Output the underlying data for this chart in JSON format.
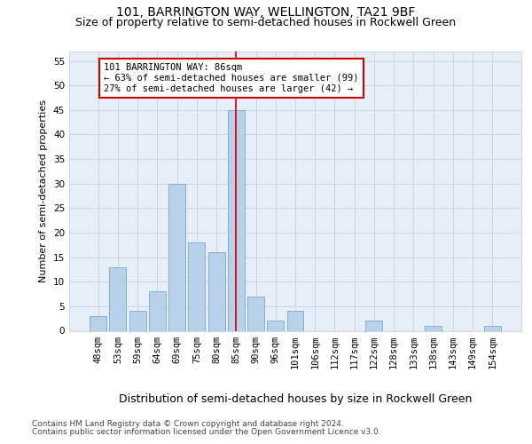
{
  "title1": "101, BARRINGTON WAY, WELLINGTON, TA21 9BF",
  "title2": "Size of property relative to semi-detached houses in Rockwell Green",
  "xlabel": "Distribution of semi-detached houses by size in Rockwell Green",
  "ylabel": "Number of semi-detached properties",
  "bar_labels": [
    "48sqm",
    "53sqm",
    "59sqm",
    "64sqm",
    "69sqm",
    "75sqm",
    "80sqm",
    "85sqm",
    "90sqm",
    "96sqm",
    "101sqm",
    "106sqm",
    "112sqm",
    "117sqm",
    "122sqm",
    "128sqm",
    "133sqm",
    "138sqm",
    "143sqm",
    "149sqm",
    "154sqm"
  ],
  "bar_values": [
    3,
    13,
    4,
    8,
    30,
    18,
    16,
    45,
    7,
    2,
    4,
    0,
    0,
    0,
    2,
    0,
    0,
    1,
    0,
    0,
    1
  ],
  "bar_color": "#b8d0e8",
  "bar_edgecolor": "#7aaac8",
  "highlight_index": 7,
  "highlight_color": "#cc0000",
  "annotation_line1": "101 BARRINGTON WAY: 86sqm",
  "annotation_line2": "← 63% of semi-detached houses are smaller (99)",
  "annotation_line3": "27% of semi-detached houses are larger (42) →",
  "annotation_box_color": "#cc0000",
  "ylim": [
    0,
    57
  ],
  "yticks": [
    0,
    5,
    10,
    15,
    20,
    25,
    30,
    35,
    40,
    45,
    50,
    55
  ],
  "footnote1": "Contains HM Land Registry data © Crown copyright and database right 2024.",
  "footnote2": "Contains public sector information licensed under the Open Government Licence v3.0.",
  "background_color": "#ffffff",
  "plot_bg_color": "#e8eef8",
  "grid_color": "#c8d4e8",
  "title1_fontsize": 10,
  "title2_fontsize": 9,
  "xlabel_fontsize": 9,
  "ylabel_fontsize": 8,
  "tick_fontsize": 7.5,
  "annotation_fontsize": 7.5,
  "footnote_fontsize": 6.5
}
